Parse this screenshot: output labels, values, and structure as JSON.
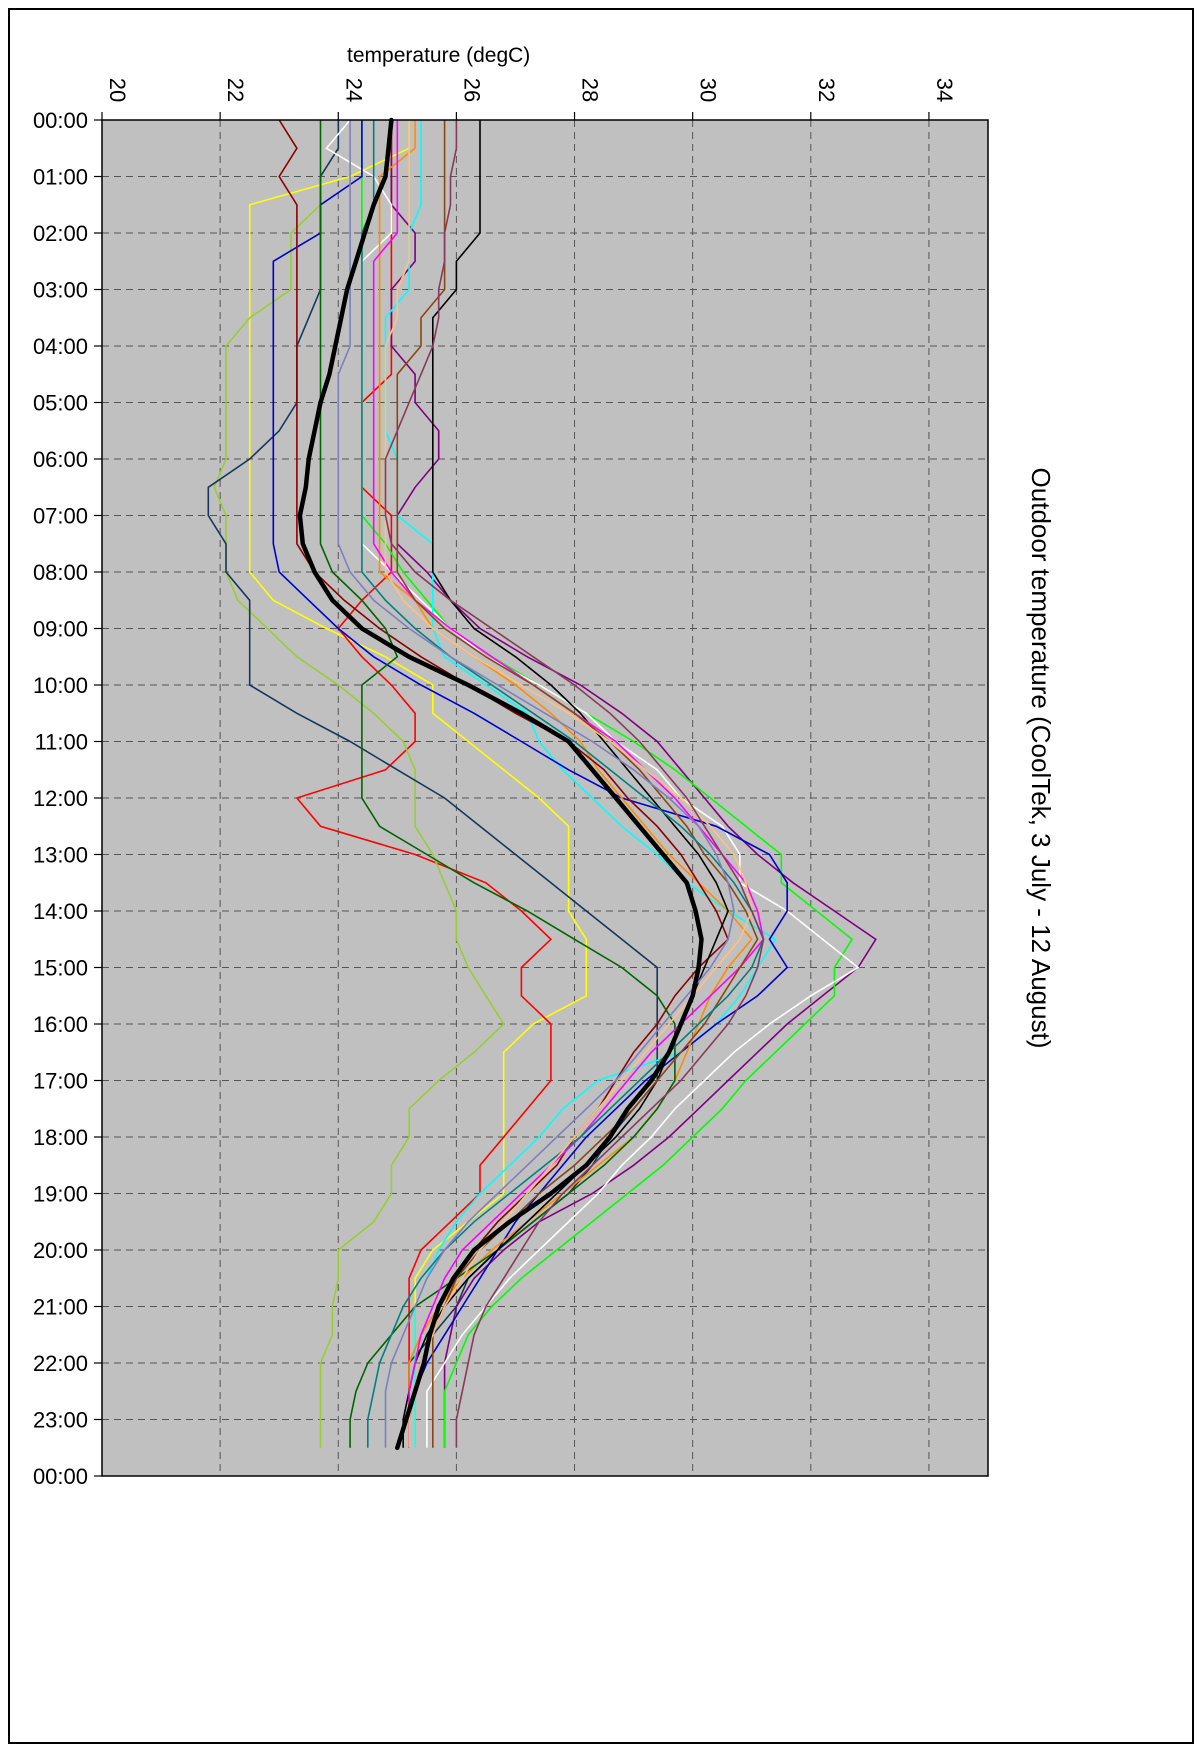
{
  "chart_data": {
    "type": "line",
    "title": "Outdoor temperature (CoolTek, 3 July - 12 August)",
    "xlabel": "temperature (degC)",
    "ylabel": "",
    "orientation": "time on vertical axis (downward), temperature on horizontal axis",
    "xlim": [
      20,
      35
    ],
    "x_ticks": [
      20,
      22,
      24,
      26,
      28,
      30,
      32,
      34
    ],
    "x_tick_labels": [
      "20",
      "22",
      "24",
      "26",
      "28",
      "30",
      "32",
      "34"
    ],
    "ylim_hours": [
      0,
      24
    ],
    "y_tick_labels": [
      "00:00",
      "01:00",
      "02:00",
      "03:00",
      "04:00",
      "05:00",
      "06:00",
      "07:00",
      "08:00",
      "09:00",
      "10:00",
      "11:00",
      "12:00",
      "13:00",
      "14:00",
      "15:00",
      "16:00",
      "17:00",
      "18:00",
      "19:00",
      "20:00",
      "21:00",
      "22:00",
      "23:00",
      "00:00"
    ],
    "grid": true,
    "plot_background": "#c0c0c0",
    "time_hours": [
      0,
      0.5,
      1,
      1.5,
      2,
      2.5,
      3,
      3.5,
      4,
      4.5,
      5,
      5.5,
      6,
      6.5,
      7,
      7.5,
      8,
      8.5,
      9,
      9.5,
      10,
      10.5,
      11,
      11.5,
      12,
      12.5,
      13,
      13.5,
      14,
      14.5,
      15,
      15.5,
      16,
      16.5,
      17,
      17.5,
      18,
      18.5,
      19,
      19.5,
      20,
      20.5,
      21,
      21.5,
      22,
      22.5,
      23,
      23.5
    ],
    "mean_series": {
      "color": "#000000",
      "values": [
        24.9,
        24.85,
        24.8,
        24.6,
        24.45,
        24.3,
        24.15,
        24.05,
        23.95,
        23.85,
        23.7,
        23.6,
        23.5,
        23.45,
        23.35,
        23.4,
        23.6,
        23.9,
        24.4,
        25.2,
        26.2,
        27.1,
        27.9,
        28.3,
        28.7,
        29.1,
        29.5,
        29.9,
        30.05,
        30.15,
        30.1,
        30.0,
        29.8,
        29.6,
        29.3,
        28.9,
        28.6,
        28.2,
        27.6,
        26.9,
        26.3,
        25.95,
        25.7,
        25.55,
        25.45,
        25.3,
        25.15,
        25.0
      ]
    },
    "series": [
      {
        "color": "#ffff00",
        "values": [
          25.2,
          25.2,
          24.2,
          22.5,
          22.5,
          22.5,
          22.5,
          22.5,
          22.5,
          22.5,
          22.5,
          22.5,
          22.5,
          22.5,
          22.5,
          22.5,
          22.5,
          22.9,
          23.8,
          24.8,
          25.6,
          25.6,
          26.2,
          26.8,
          27.4,
          27.9,
          27.9,
          27.9,
          27.9,
          28.2,
          28.2,
          28.2,
          27.3,
          26.8,
          26.8,
          26.8,
          26.8,
          26.8,
          26.8,
          26.2,
          25.6,
          25.3,
          25.3,
          25.3,
          25.3,
          25.3,
          25.3,
          25.3
        ]
      },
      {
        "color": "#ff0000",
        "values": [
          24.9,
          24.9,
          24.9,
          24.9,
          24.9,
          24.9,
          24.9,
          24.9,
          24.9,
          24.9,
          24.4,
          24.4,
          24.4,
          24.4,
          24.9,
          24.9,
          24.9,
          24.4,
          24.0,
          24.4,
          24.9,
          25.3,
          25.3,
          24.8,
          23.3,
          23.7,
          25.3,
          26.5,
          27.1,
          27.6,
          27.1,
          27.1,
          27.6,
          27.6,
          27.6,
          27.2,
          26.8,
          26.4,
          26.4,
          25.9,
          25.4,
          25.2,
          25.2,
          25.2,
          25.2,
          25.2,
          25.2,
          25.2
        ]
      },
      {
        "color": "#9acd32",
        "values": [
          24.0,
          24.0,
          23.7,
          23.7,
          23.2,
          23.2,
          23.2,
          22.5,
          22.1,
          22.1,
          22.1,
          22.1,
          22.1,
          21.9,
          22.1,
          22.1,
          22.1,
          22.3,
          22.8,
          23.3,
          24.0,
          24.6,
          25.1,
          25.3,
          25.3,
          25.3,
          25.6,
          25.8,
          26.0,
          26.0,
          26.2,
          26.5,
          26.8,
          26.3,
          25.7,
          25.2,
          25.2,
          24.9,
          24.9,
          24.6,
          24.0,
          24.0,
          23.9,
          23.9,
          23.7,
          23.7,
          23.7,
          23.7
        ]
      },
      {
        "color": "#17365d",
        "values": [
          24.0,
          24.0,
          23.7,
          23.7,
          23.7,
          23.7,
          23.7,
          23.5,
          23.3,
          23.3,
          23.3,
          23.0,
          22.5,
          21.8,
          21.8,
          22.1,
          22.1,
          22.5,
          22.5,
          22.5,
          22.5,
          23.3,
          24.2,
          25.0,
          25.8,
          26.4,
          27.0,
          27.6,
          28.2,
          28.8,
          29.4,
          29.4,
          29.4,
          29.4,
          29.4,
          29.0,
          28.6,
          28.3,
          27.9,
          27.3,
          26.7,
          26.2,
          26.0,
          25.6,
          25.2,
          25.2,
          25.2,
          25.2
        ]
      },
      {
        "color": "#800080",
        "values": [
          24.9,
          24.9,
          24.9,
          24.9,
          25.3,
          25.3,
          24.9,
          24.9,
          24.9,
          25.3,
          25.3,
          25.7,
          25.7,
          25.3,
          25.0,
          25.0,
          25.5,
          25.9,
          26.4,
          27.2,
          28.1,
          28.8,
          29.4,
          29.8,
          30.2,
          30.6,
          31.1,
          31.7,
          32.4,
          33.1,
          32.8,
          32.2,
          31.6,
          31.1,
          30.6,
          30.1,
          29.6,
          29.0,
          28.3,
          27.4,
          26.8,
          26.3,
          26.0,
          25.9,
          25.8,
          25.8,
          25.8,
          25.8
        ]
      },
      {
        "color": "#00ff00",
        "values": [
          24.4,
          24.4,
          24.4,
          24.4,
          24.4,
          24.4,
          24.4,
          24.4,
          24.4,
          24.4,
          24.4,
          24.4,
          24.4,
          24.4,
          24.4,
          24.8,
          25.1,
          25.5,
          25.9,
          26.6,
          27.4,
          28.2,
          29.0,
          29.7,
          30.3,
          30.9,
          31.5,
          31.5,
          32.1,
          32.7,
          32.4,
          32.4,
          31.9,
          31.4,
          30.9,
          30.5,
          30.0,
          29.5,
          28.9,
          28.3,
          27.7,
          27.1,
          26.6,
          26.2,
          26.0,
          25.8,
          25.8,
          25.8
        ]
      },
      {
        "color": "#ffffff",
        "values": [
          24.2,
          23.8,
          24.6,
          24.9,
          24.9,
          24.4,
          24.4,
          24.4,
          24.4,
          24.4,
          24.4,
          24.4,
          24.4,
          24.4,
          24.4,
          24.4,
          24.9,
          25.4,
          25.9,
          26.5,
          27.4,
          28.2,
          28.7,
          29.4,
          29.8,
          30.5,
          30.8,
          30.8,
          31.6,
          32.2,
          32.8,
          32.0,
          31.3,
          30.7,
          30.2,
          29.7,
          29.3,
          28.8,
          28.4,
          27.9,
          27.4,
          26.9,
          26.5,
          26.1,
          25.8,
          25.5,
          25.5,
          25.5
        ]
      },
      {
        "color": "#00ffff",
        "values": [
          25.4,
          25.4,
          25.4,
          25.4,
          25.2,
          25.2,
          25.2,
          24.8,
          24.8,
          24.8,
          24.8,
          24.8,
          25.0,
          25.0,
          25.0,
          25.6,
          25.6,
          25.6,
          25.6,
          25.8,
          26.5,
          27.2,
          27.4,
          27.8,
          28.3,
          28.8,
          29.4,
          29.9,
          30.6,
          31.4,
          31.1,
          30.8,
          30.4,
          29.8,
          28.4,
          27.8,
          27.4,
          26.9,
          26.4,
          26.0,
          25.7,
          25.5,
          25.3,
          25.3,
          25.3,
          25.3,
          25.3,
          25.3
        ]
      },
      {
        "color": "#0000cd",
        "values": [
          24.4,
          24.4,
          24.4,
          23.7,
          23.7,
          22.9,
          22.9,
          22.9,
          22.9,
          22.9,
          22.9,
          22.9,
          22.9,
          22.9,
          22.9,
          22.9,
          23.0,
          23.5,
          24.0,
          24.6,
          25.4,
          26.3,
          27.1,
          27.9,
          28.8,
          30.4,
          31.3,
          31.6,
          31.6,
          31.3,
          31.6,
          31.1,
          30.4,
          29.8,
          29.2,
          28.7,
          28.2,
          27.8,
          27.4,
          27.0,
          26.7,
          26.4,
          26.1,
          25.8,
          25.5,
          25.3,
          25.2,
          25.2
        ]
      },
      {
        "color": "#ff8c00",
        "values": [
          25.3,
          25.3,
          24.7,
          24.7,
          24.7,
          24.7,
          24.7,
          24.7,
          24.7,
          24.7,
          24.7,
          24.7,
          24.7,
          24.7,
          24.7,
          24.7,
          24.7,
          25.3,
          25.6,
          26.3,
          27.0,
          27.6,
          28.1,
          28.4,
          28.8,
          29.2,
          29.6,
          30.1,
          30.6,
          31.0,
          30.6,
          30.3,
          30.1,
          29.9,
          29.7,
          29.4,
          29.0,
          28.4,
          27.8,
          27.2,
          26.6,
          26.1,
          25.7,
          25.4,
          25.2,
          25.2,
          25.2,
          25.2
        ]
      },
      {
        "color": "#8b0000",
        "values": [
          23.0,
          23.3,
          23.0,
          23.3,
          23.3,
          23.3,
          23.3,
          23.3,
          23.3,
          23.3,
          23.3,
          23.3,
          23.3,
          23.3,
          23.3,
          23.3,
          23.6,
          24.1,
          24.7,
          25.4,
          26.2,
          27.0,
          27.9,
          28.5,
          28.9,
          29.4,
          29.8,
          30.1,
          30.4,
          30.6,
          30.1,
          29.7,
          29.4,
          29.0,
          28.7,
          28.4,
          28.0,
          27.7,
          27.2,
          26.7,
          26.3,
          26.0,
          25.8,
          25.6,
          25.4,
          25.3,
          25.2,
          25.2
        ]
      },
      {
        "color": "#006400",
        "values": [
          23.7,
          23.7,
          23.7,
          23.7,
          23.7,
          23.7,
          23.7,
          23.7,
          23.7,
          23.7,
          23.7,
          23.7,
          23.7,
          23.7,
          23.7,
          23.7,
          23.9,
          24.4,
          24.8,
          25.0,
          24.4,
          24.4,
          24.4,
          24.4,
          24.4,
          24.7,
          25.5,
          26.3,
          27.2,
          28.0,
          28.8,
          29.4,
          29.7,
          29.7,
          29.7,
          29.4,
          29.0,
          28.5,
          27.9,
          27.3,
          26.7,
          26.0,
          25.3,
          24.9,
          24.5,
          24.3,
          24.2,
          24.2
        ]
      },
      {
        "color": "#000000",
        "values": [
          26.4,
          26.4,
          26.4,
          26.4,
          26.4,
          26.0,
          26.0,
          25.6,
          25.6,
          25.6,
          25.6,
          25.6,
          25.6,
          25.6,
          25.6,
          25.6,
          25.6,
          25.9,
          26.3,
          27.0,
          27.6,
          28.1,
          28.5,
          28.9,
          29.3,
          29.7,
          30.1,
          30.4,
          30.6,
          30.4,
          30.2,
          30.0,
          29.8,
          29.6,
          29.4,
          29.1,
          28.7,
          28.2,
          27.7,
          27.2,
          26.7,
          26.2,
          25.8,
          25.5,
          25.3,
          25.2,
          25.1,
          25.1
        ]
      },
      {
        "color": "#ff00ff",
        "values": [
          25.0,
          25.0,
          25.0,
          25.0,
          25.0,
          24.6,
          24.6,
          24.6,
          24.6,
          24.6,
          24.6,
          24.6,
          24.6,
          24.6,
          24.6,
          24.6,
          24.9,
          25.3,
          25.9,
          26.6,
          27.3,
          28.0,
          28.7,
          29.2,
          29.7,
          30.1,
          30.5,
          30.9,
          31.1,
          31.2,
          30.8,
          30.3,
          29.8,
          29.3,
          28.9,
          28.5,
          28.1,
          27.6,
          27.1,
          26.6,
          26.1,
          25.8,
          25.6,
          25.4,
          25.3,
          25.2,
          25.2,
          25.2
        ]
      },
      {
        "color": "#8b4513",
        "values": [
          25.8,
          25.8,
          25.8,
          25.8,
          25.8,
          25.8,
          25.8,
          25.4,
          25.4,
          25.0,
          25.0,
          25.0,
          25.0,
          25.0,
          25.0,
          25.0,
          25.0,
          25.3,
          25.8,
          26.5,
          27.3,
          28.0,
          28.6,
          29.1,
          29.5,
          29.9,
          30.2,
          30.6,
          30.9,
          31.1,
          30.8,
          30.5,
          30.2,
          29.8,
          29.4,
          29.0,
          28.5,
          28.0,
          27.4,
          26.9,
          26.4,
          26.0,
          25.8,
          25.6,
          25.6,
          25.6,
          25.6,
          25.6
        ]
      },
      {
        "color": "#008080",
        "values": [
          24.6,
          24.6,
          24.6,
          24.6,
          24.4,
          24.4,
          24.4,
          24.4,
          24.4,
          24.4,
          24.4,
          24.4,
          24.4,
          24.4,
          24.4,
          24.4,
          24.4,
          24.8,
          25.3,
          25.9,
          26.6,
          27.3,
          28.0,
          28.6,
          29.2,
          29.8,
          30.3,
          30.7,
          31.0,
          31.2,
          31.0,
          30.6,
          30.1,
          29.6,
          29.1,
          28.6,
          28.1,
          27.5,
          26.9,
          26.3,
          25.8,
          25.4,
          25.1,
          24.9,
          24.7,
          24.6,
          24.5,
          24.5
        ]
      },
      {
        "color": "#ffc080",
        "values": [
          25.2,
          25.2,
          25.2,
          25.2,
          25.2,
          25.2,
          25.0,
          25.0,
          24.8,
          24.8,
          24.8,
          24.8,
          24.8,
          24.8,
          24.8,
          24.8,
          24.8,
          25.1,
          25.6,
          26.3,
          27.1,
          27.9,
          28.6,
          29.2,
          29.8,
          30.3,
          30.7,
          30.9,
          31.0,
          30.8,
          30.4,
          30.0,
          29.6,
          29.2,
          28.8,
          28.4,
          28.0,
          27.6,
          27.2,
          26.8,
          26.4,
          26.1,
          25.8,
          25.6,
          25.4,
          25.3,
          25.2,
          25.2
        ]
      },
      {
        "color": "#7f7fbf",
        "values": [
          24.2,
          24.2,
          24.2,
          24.2,
          24.2,
          24.2,
          24.2,
          24.2,
          24.2,
          24.0,
          24.0,
          24.0,
          24.0,
          24.0,
          24.0,
          24.0,
          24.2,
          24.6,
          25.2,
          25.9,
          26.7,
          27.5,
          28.3,
          29.0,
          29.6,
          30.1,
          30.4,
          30.6,
          30.7,
          30.6,
          30.3,
          29.9,
          29.5,
          29.1,
          28.7,
          28.2,
          27.7,
          27.2,
          26.7,
          26.2,
          25.8,
          25.5,
          25.3,
          25.1,
          24.9,
          24.8,
          24.8,
          24.8
        ]
      },
      {
        "color": "#873a5a",
        "values": [
          26.0,
          26.0,
          25.9,
          25.9,
          25.8,
          25.8,
          25.7,
          25.7,
          25.6,
          25.4,
          25.2,
          25.0,
          24.8,
          24.8,
          24.8,
          24.9,
          25.3,
          25.9,
          26.6,
          27.3,
          28.0,
          28.6,
          29.1,
          29.5,
          29.9,
          30.2,
          30.5,
          30.8,
          31.0,
          31.2,
          31.1,
          30.9,
          30.6,
          30.2,
          29.8,
          29.3,
          28.8,
          28.3,
          27.8,
          27.4,
          27.1,
          26.8,
          26.5,
          26.3,
          26.2,
          26.1,
          26.0,
          26.0
        ]
      }
    ]
  }
}
